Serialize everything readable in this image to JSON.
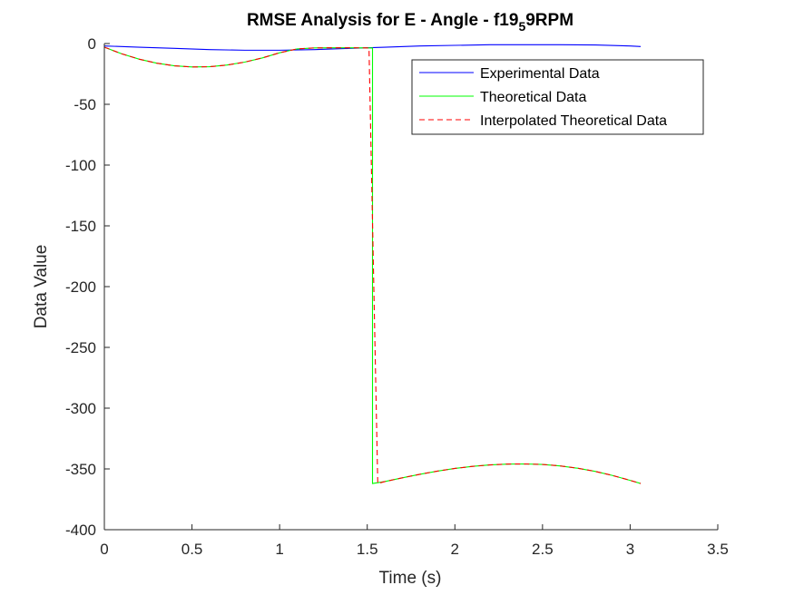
{
  "chart_data": {
    "type": "line",
    "title_main": "RMSE Analysis for E - Angle - f19",
    "title_sub": "5",
    "title_end": "9RPM",
    "xlabel": "Time (s)",
    "ylabel": "Data Value",
    "xlim": [
      0,
      3.5
    ],
    "ylim": [
      -400,
      0
    ],
    "xticks": [
      0,
      0.5,
      1,
      1.5,
      2,
      2.5,
      3,
      3.5
    ],
    "xtick_labels": [
      "0",
      "0.5",
      "1",
      "1.5",
      "2",
      "2.5",
      "3",
      "3.5"
    ],
    "yticks": [
      0,
      -50,
      -100,
      -150,
      -200,
      -250,
      -300,
      -350,
      -400
    ],
    "ytick_labels": [
      "0",
      "-50",
      "-100",
      "-150",
      "-200",
      "-250",
      "-300",
      "-350",
      "-400"
    ],
    "grid": false,
    "legend_position": "top-right",
    "series": [
      {
        "name": "Experimental Data",
        "color": "#0000ff",
        "style": "solid",
        "x": [
          0,
          0.2,
          0.4,
          0.6,
          0.8,
          1.0,
          1.2,
          1.4,
          1.6,
          1.8,
          2.0,
          2.2,
          2.4,
          2.6,
          2.8,
          3.0,
          3.06
        ],
        "y": [
          -2,
          -3,
          -4,
          -5,
          -5.5,
          -5.5,
          -5,
          -4,
          -3,
          -2,
          -1.5,
          -1,
          -1,
          -1,
          -1.2,
          -2,
          -2.5
        ]
      },
      {
        "name": "Theoretical Data",
        "color": "#00ff00",
        "style": "solid",
        "x": [
          0,
          0.1,
          0.2,
          0.3,
          0.4,
          0.5,
          0.6,
          0.7,
          0.8,
          0.9,
          1.0,
          1.1,
          1.2,
          1.3,
          1.4,
          1.5,
          1.53,
          1.53,
          1.6,
          1.7,
          1.8,
          1.9,
          2.0,
          2.1,
          2.2,
          2.3,
          2.4,
          2.5,
          2.6,
          2.7,
          2.8,
          2.9,
          3.0,
          3.06
        ],
        "y": [
          -3,
          -8.5,
          -12.9,
          -16.2,
          -18.3,
          -19.3,
          -19.1,
          -17.7,
          -15.3,
          -11.9,
          -7.6,
          -4.4,
          -3.6,
          -3.5,
          -3.5,
          -3.6,
          -3.7,
          -362,
          -360.4,
          -357.3,
          -354.4,
          -351.8,
          -349.6,
          -347.9,
          -346.7,
          -346.0,
          -345.9,
          -346.3,
          -347.5,
          -349.4,
          -352.0,
          -355.4,
          -359.4,
          -362
        ]
      },
      {
        "name": "Interpolated Theoretical Data",
        "color": "#ff0000",
        "style": "dashed",
        "x": [
          0,
          0.1,
          0.2,
          0.3,
          0.4,
          0.5,
          0.6,
          0.7,
          0.8,
          0.9,
          1.0,
          1.1,
          1.2,
          1.3,
          1.4,
          1.5,
          1.51,
          1.56,
          1.6,
          1.7,
          1.8,
          1.9,
          2.0,
          2.1,
          2.2,
          2.3,
          2.4,
          2.5,
          2.6,
          2.7,
          2.8,
          2.9,
          3.0,
          3.06
        ],
        "y": [
          -3,
          -8.5,
          -12.9,
          -16.2,
          -18.3,
          -19.3,
          -19.1,
          -17.7,
          -15.3,
          -11.9,
          -7.6,
          -4.4,
          -3.6,
          -3.5,
          -3.5,
          -3.6,
          -3.7,
          -362,
          -360.4,
          -357.3,
          -354.4,
          -351.8,
          -349.6,
          -347.9,
          -346.7,
          -346.0,
          -345.9,
          -346.3,
          -347.5,
          -349.4,
          -352.0,
          -355.4,
          -359.4,
          -362
        ]
      }
    ]
  }
}
